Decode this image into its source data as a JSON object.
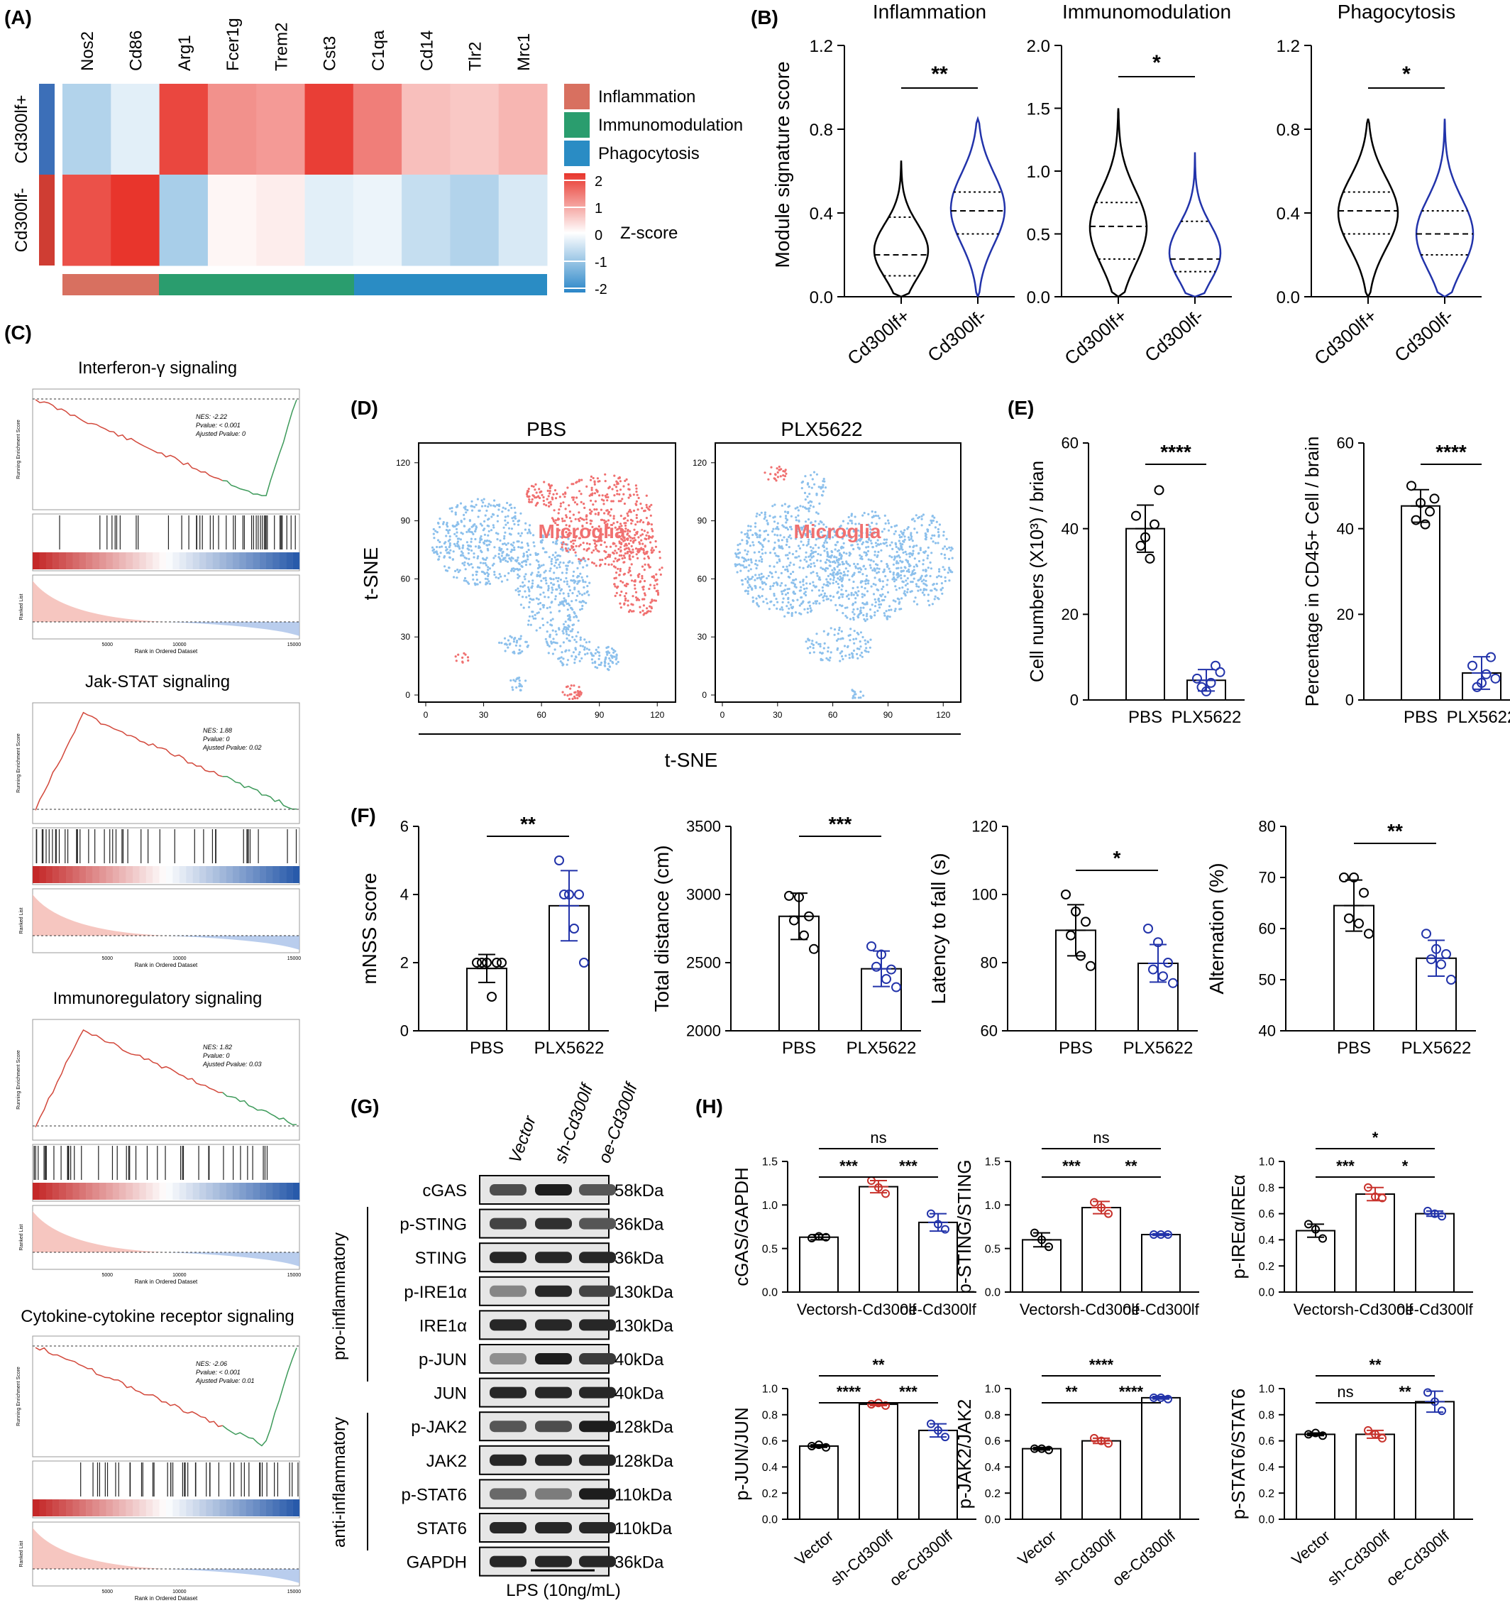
{
  "colors": {
    "inflammation": "#d87060",
    "immunomodulation": "#2a9d6e",
    "phagocytosis": "#2a8cc4",
    "cd300lf_pos": "#3c6fb8",
    "cd300lf_neg": "#cf3d33",
    "microglia_red": "#f07070",
    "other_blue": "#8cc0ec",
    "blue_series": "#2233aa",
    "red_series": "#c8322c"
  },
  "panelA": {
    "label": "(A)",
    "genes": [
      "Nos2",
      "Cd86",
      "Arg1",
      "Fcer1g",
      "Trem2",
      "Cst3",
      "C1qa",
      "Cd14",
      "Tlr2",
      "Mrc1"
    ],
    "rows": [
      "Cd300lf+",
      "Cd300lf-"
    ],
    "z": [
      [
        -0.8,
        -0.3,
        2.0,
        1.2,
        1.1,
        2.1,
        1.4,
        0.7,
        0.6,
        0.8
      ],
      [
        1.9,
        2.2,
        -0.9,
        0.1,
        0.2,
        -0.3,
        -0.2,
        -0.6,
        -0.8,
        -0.4
      ]
    ],
    "modules": [
      "Inflammation",
      "Immunomodulation",
      "Phagocytosis"
    ],
    "colorbar_title": "Z-score",
    "colorbar_ticks": [
      "2",
      "1",
      "0",
      "-1",
      "-2"
    ]
  },
  "panelB": {
    "label": "(B)",
    "ylabel": "Module signature score",
    "groups": [
      "Cd300lf+",
      "Cd300lf-"
    ],
    "plots": [
      {
        "title": "Inflammation",
        "ymax": 1.2,
        "ticks": [
          "1.2",
          "0.8",
          "0.4",
          "0.0"
        ],
        "sig": "**"
      },
      {
        "title": "Immunomodulation",
        "ymax": 2.0,
        "ticks": [
          "2.0",
          "1.5",
          "1.0",
          "0.5",
          "0.0"
        ],
        "sig": "*"
      },
      {
        "title": "Phagocytosis",
        "ymax": 1.2,
        "ticks": [
          "1.2",
          "0.8",
          "0.4",
          "0.0"
        ],
        "sig": "*"
      }
    ]
  },
  "panelC": {
    "label": "(C)",
    "plots": [
      {
        "title": "Interferon-γ signaling",
        "stats": [
          "NES: -2.22",
          "Pvalue: < 0.001",
          "Ajusted Pvalue: 0"
        ]
      },
      {
        "title": "Jak-STAT signaling",
        "stats": [
          "NES: 1.88",
          "Pvalue: 0",
          "Ajusted Pvalue: 0.02"
        ]
      },
      {
        "title": "Immunoregulatory signaling",
        "stats": [
          "NES: 1.82",
          "Pvalue: 0",
          "Ajusted Pvalue: 0.03"
        ]
      },
      {
        "title": "Cytokine-cytokine receptor signaling",
        "stats": [
          "NES: -2.06",
          "Pvalue: < 0.001",
          "Ajusted Pvalue: 0.01"
        ]
      }
    ],
    "es_axis_label": "Running Enrichment Score",
    "rank_axis_label": "Ranked List",
    "xlabel": "Rank in Ordered Dataset",
    "xticks": [
      "5000",
      "10000",
      "15000"
    ]
  },
  "panelD": {
    "label": "(D)",
    "titles": [
      "PBS",
      "PLX5622"
    ],
    "cluster_label": "Microglia",
    "xlabel": "t-SNE",
    "ylabel": "t-SNE",
    "ticks": [
      "0",
      "30",
      "60",
      "90",
      "120"
    ]
  },
  "panelE": {
    "label": "(E)",
    "categories": [
      "PBS",
      "PLX5622"
    ],
    "plots": [
      {
        "ylabel": "Cell numbers (X10³) / brian",
        "ticks": [
          "60",
          "40",
          "20",
          "0"
        ],
        "ymax": 60,
        "means": [
          40,
          4.6
        ],
        "sds": [
          5.5,
          2.5
        ],
        "sig": "****",
        "points": [
          [
            43,
            38,
            41,
            36,
            33,
            49
          ],
          [
            5,
            2,
            8,
            3,
            4,
            6.5
          ]
        ]
      },
      {
        "ylabel": "Percentage in CD45+ Cell / brain",
        "ticks": [
          "60",
          "40",
          "20",
          "0"
        ],
        "ymax": 60,
        "means": [
          45.3,
          6.3
        ],
        "sds": [
          3.8,
          3.8
        ],
        "sig": "****",
        "points": [
          [
            50,
            46,
            44,
            42,
            41,
            47
          ],
          [
            8,
            4,
            10,
            3,
            6,
            5
          ]
        ]
      }
    ]
  },
  "panelF": {
    "label": "(F)",
    "categories": [
      "PBS",
      "PLX5622"
    ],
    "plots": [
      {
        "ylabel": "mNSS score",
        "ymin": 0,
        "ymax": 6,
        "ticks": [
          "6",
          "4",
          "2",
          "0"
        ],
        "means": [
          1.83,
          3.67
        ],
        "sds": [
          0.41,
          1.03
        ],
        "sig": "**",
        "points": [
          [
            2,
            2,
            2,
            2,
            1,
            2
          ],
          [
            5,
            4,
            4,
            4,
            3,
            2
          ]
        ]
      },
      {
        "ylabel": "Total distance (cm)",
        "ymin": 2000,
        "ymax": 3500,
        "ticks": [
          "3500",
          "3000",
          "2500",
          "2000"
        ],
        "means": [
          2840,
          2455
        ],
        "sds": [
          170,
          130
        ],
        "sig": "***",
        "points": [
          [
            2990,
            2980,
            2840,
            2810,
            2700,
            2600
          ],
          [
            2620,
            2560,
            2450,
            2470,
            2380,
            2320
          ]
        ]
      },
      {
        "ylabel": "Latency to fall (s)",
        "ymin": 60,
        "ymax": 120,
        "ticks": [
          "120",
          "100",
          "80",
          "60"
        ],
        "means": [
          89.5,
          79.8
        ],
        "sds": [
          7.5,
          5.5
        ],
        "sig": "*",
        "points": [
          [
            100,
            95,
            92,
            88,
            82,
            79
          ],
          [
            90,
            86,
            80,
            78,
            76,
            74
          ]
        ]
      },
      {
        "ylabel": "Alternation (%)",
        "ymin": 40,
        "ymax": 80,
        "ticks": [
          "80",
          "70",
          "60",
          "50",
          "40"
        ],
        "means": [
          64.5,
          54.2
        ],
        "sds": [
          5,
          3.5
        ],
        "sig": "**",
        "points": [
          [
            70,
            70,
            67,
            62,
            61,
            59
          ],
          [
            59,
            56,
            55,
            54,
            53,
            50
          ]
        ]
      }
    ]
  },
  "panelG": {
    "label": "(G)",
    "lanes": [
      "Vector",
      "sh-Cd300lf",
      "oe-Cd300lf"
    ],
    "bands": [
      {
        "name": "cGAS",
        "kda": "58kDa",
        "i": [
          0.65,
          0.9,
          0.6
        ]
      },
      {
        "name": "p-STING",
        "kda": "36kDa",
        "i": [
          0.7,
          0.8,
          0.6
        ]
      },
      {
        "name": "STING",
        "kda": "36kDa",
        "i": [
          0.85,
          0.85,
          0.85
        ]
      },
      {
        "name": "p-IRE1α",
        "kda": "130kDa",
        "i": [
          0.35,
          0.85,
          0.7
        ]
      },
      {
        "name": "IRE1α",
        "kda": "130kDa",
        "i": [
          0.85,
          0.85,
          0.85
        ]
      },
      {
        "name": "p-JUN",
        "kda": "40kDa",
        "i": [
          0.3,
          0.9,
          0.75
        ]
      },
      {
        "name": "JUN",
        "kda": "40kDa",
        "i": [
          0.85,
          0.85,
          0.85
        ]
      },
      {
        "name": "p-JAK2",
        "kda": "128kDa",
        "i": [
          0.6,
          0.65,
          0.9
        ]
      },
      {
        "name": "JAK2",
        "kda": "128kDa",
        "i": [
          0.85,
          0.85,
          0.85
        ]
      },
      {
        "name": "p-STAT6",
        "kda": "110kDa",
        "i": [
          0.5,
          0.4,
          0.9
        ]
      },
      {
        "name": "STAT6",
        "kda": "110kDa",
        "i": [
          0.85,
          0.85,
          0.85
        ]
      },
      {
        "name": "GAPDH",
        "kda": "36kDa",
        "i": [
          0.85,
          0.85,
          0.85
        ]
      }
    ],
    "group_pro": "pro-inflammatory",
    "group_anti": "anti-inflammatory",
    "treatment": "LPS (10ng/mL)"
  },
  "panelH": {
    "label": "(H)",
    "categories": [
      "Vector",
      "sh-Cd300lf",
      "oe-Cd300lf"
    ],
    "plots": [
      {
        "ylabel": "cGAS/GAPDH",
        "ymax": 1.5,
        "ticks": [
          "1.5",
          "1.0",
          "0.5",
          "0.0"
        ],
        "means": [
          0.63,
          1.21,
          0.8
        ],
        "sds": [
          0.03,
          0.07,
          0.1
        ],
        "sig": {
          "ab": "***",
          "bc": "***",
          "ac": "ns"
        },
        "points": [
          [
            0.62,
            0.64,
            0.63
          ],
          [
            1.28,
            1.2,
            1.13
          ],
          [
            0.9,
            0.78,
            0.72
          ]
        ]
      },
      {
        "ylabel": "p-STING/STING",
        "ymax": 1.5,
        "ticks": [
          "1.5",
          "1.0",
          "0.5",
          "0.0"
        ],
        "means": [
          0.6,
          0.97,
          0.66
        ],
        "sds": [
          0.08,
          0.07,
          0.01
        ],
        "sig": {
          "ab": "***",
          "bc": "**",
          "ac": "ns"
        },
        "points": [
          [
            0.68,
            0.6,
            0.52
          ],
          [
            1.03,
            0.97,
            0.9
          ],
          [
            0.66,
            0.66,
            0.66
          ]
        ]
      },
      {
        "ylabel": "p-IREα/IREα",
        "ymax": 1.0,
        "ticks": [
          "1.0",
          "0.8",
          "0.6",
          "0.4",
          "0.2",
          "0.0"
        ],
        "means": [
          0.47,
          0.75,
          0.6
        ],
        "sds": [
          0.05,
          0.05,
          0.02
        ],
        "sig": {
          "ab": "***",
          "bc": "*",
          "ac": "*"
        },
        "points": [
          [
            0.52,
            0.48,
            0.41
          ],
          [
            0.8,
            0.73,
            0.72
          ],
          [
            0.62,
            0.6,
            0.58
          ]
        ]
      },
      {
        "ylabel": "p-JUN/JUN",
        "ymax": 1.0,
        "ticks": [
          "1.0",
          "0.8",
          "0.6",
          "0.4",
          "0.2",
          "0.0"
        ],
        "means": [
          0.56,
          0.88,
          0.68
        ],
        "sds": [
          0.01,
          0.01,
          0.05
        ],
        "sig": {
          "ab": "****",
          "bc": "***",
          "ac": "**"
        },
        "points": [
          [
            0.56,
            0.57,
            0.55
          ],
          [
            0.88,
            0.89,
            0.87
          ],
          [
            0.73,
            0.68,
            0.63
          ]
        ]
      },
      {
        "ylabel": "p-JAK2/JAK2",
        "ymax": 1.0,
        "ticks": [
          "1.0",
          "0.8",
          "0.6",
          "0.4",
          "0.2",
          "0.0"
        ],
        "means": [
          0.54,
          0.6,
          0.93
        ],
        "sds": [
          0.01,
          0.02,
          0.01
        ],
        "sig": {
          "ab": "**",
          "bc": "****",
          "ac": "****"
        },
        "points": [
          [
            0.54,
            0.54,
            0.53
          ],
          [
            0.62,
            0.6,
            0.58
          ],
          [
            0.93,
            0.93,
            0.92
          ]
        ]
      },
      {
        "ylabel": "p-STAT6/STAT6",
        "ymax": 1.0,
        "ticks": [
          "1.0",
          "0.8",
          "0.6",
          "0.4",
          "0.2",
          "0.0"
        ],
        "means": [
          0.65,
          0.65,
          0.9
        ],
        "sds": [
          0.01,
          0.03,
          0.08
        ],
        "sig": {
          "ab": "ns",
          "bc": "**",
          "ac": "**"
        },
        "points": [
          [
            0.65,
            0.66,
            0.64
          ],
          [
            0.68,
            0.65,
            0.62
          ],
          [
            0.97,
            0.9,
            0.83
          ]
        ]
      }
    ]
  }
}
